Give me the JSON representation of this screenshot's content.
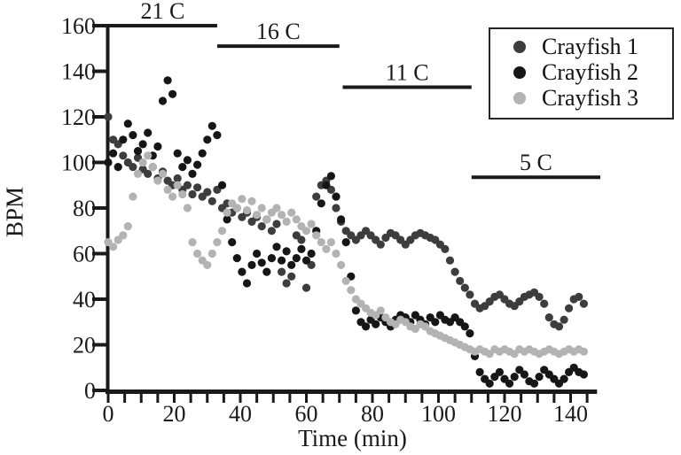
{
  "figure": {
    "background": "#ffffff",
    "text_color": "#1a1a1a"
  },
  "legend": {
    "border_color": "#262626",
    "items": [
      {
        "label": "Crayfish 1",
        "color": "#3d3d3d"
      },
      {
        "label": "Crayfish 2",
        "color": "#161616"
      },
      {
        "label": "Crayfish 3",
        "color": "#b3b3b3"
      }
    ]
  },
  "chart_data": {
    "type": "scatter",
    "title": "",
    "xlabel": "Time (min)",
    "ylabel": "BPM",
    "xlim": [
      0,
      148
    ],
    "ylim": [
      0,
      160
    ],
    "grid": false,
    "legend_position": "top-right",
    "x_major_ticks": [
      0,
      20,
      40,
      60,
      80,
      100,
      120,
      140
    ],
    "x_minor_tick_step": 5,
    "y_ticks": [
      0,
      20,
      40,
      60,
      80,
      100,
      120,
      140,
      160
    ],
    "annotations": [
      {
        "label": "21 C",
        "t_start": 0,
        "t_end": 33,
        "bpm": 160
      },
      {
        "label": "16 C",
        "t_start": 33,
        "t_end": 70,
        "bpm": 151
      },
      {
        "label": "11 C",
        "t_start": 71,
        "t_end": 110,
        "bpm": 133
      },
      {
        "label": "5 C",
        "t_start": 110,
        "t_end": 149,
        "bpm": 93.5
      }
    ],
    "t_start": 0,
    "t_step": 1.5,
    "series": [
      {
        "name": "Crayfish 1",
        "color": "#3d3d3d",
        "values": [
          120,
          110,
          108,
          103,
          100,
          98,
          102,
          97,
          95,
          98,
          93,
          96,
          92,
          90,
          93,
          88,
          90,
          86,
          89,
          85,
          87,
          83,
          88,
          80,
          82,
          78,
          80,
          76,
          78,
          74,
          76,
          72,
          75,
          70,
          73,
          52,
          47,
          50,
          68,
          66,
          45,
          55,
          85,
          90,
          92,
          88,
          80,
          74,
          70,
          68,
          66,
          68,
          70,
          68,
          66,
          64,
          67,
          69,
          68,
          66,
          64,
          66,
          68,
          69,
          68,
          67,
          66,
          64,
          62,
          57,
          52,
          48,
          45,
          42,
          38,
          36,
          37,
          39,
          41,
          42,
          40,
          38,
          37,
          39,
          41,
          42,
          43,
          41,
          38,
          32,
          29,
          28,
          31,
          36,
          40,
          41,
          38
        ]
      },
      {
        "name": "Crayfish 2",
        "color": "#161616",
        "values": [
          100,
          104,
          98,
          110,
          117,
          112,
          105,
          108,
          113,
          103,
          107,
          127,
          136,
          130,
          104,
          98,
          101,
          95,
          99,
          104,
          110,
          116,
          112,
          90,
          75,
          65,
          58,
          52,
          47,
          55,
          60,
          56,
          52,
          58,
          63,
          57,
          61,
          55,
          58,
          62,
          57,
          60,
          70,
          82,
          90,
          94,
          85,
          75,
          65,
          50,
          35,
          30,
          28,
          31,
          29,
          32,
          30,
          28,
          31,
          33,
          32,
          30,
          33,
          31,
          29,
          32,
          30,
          33,
          31,
          30,
          32,
          30,
          28,
          25,
          15,
          8,
          5,
          3,
          6,
          8,
          5,
          3,
          6,
          9,
          7,
          4,
          3,
          6,
          9,
          7,
          5,
          3,
          5,
          8,
          10,
          8,
          7
        ]
      },
      {
        "name": "Crayfish 3",
        "color": "#b3b3b3",
        "values": [
          65,
          63,
          66,
          68,
          72,
          85,
          95,
          100,
          103,
          98,
          92,
          95,
          88,
          85,
          90,
          86,
          80,
          65,
          60,
          57,
          55,
          60,
          65,
          70,
          78,
          82,
          80,
          84,
          79,
          83,
          77,
          80,
          75,
          78,
          80,
          77,
          74,
          78,
          75,
          72,
          70,
          73,
          68,
          65,
          62,
          65,
          60,
          55,
          48,
          44,
          40,
          38,
          36,
          34,
          33,
          35,
          32,
          30,
          29,
          31,
          30,
          28,
          27,
          29,
          28,
          26,
          25,
          24,
          23,
          22,
          21,
          20,
          19,
          18,
          17,
          18,
          17,
          16,
          18,
          17,
          18,
          17,
          16,
          18,
          17,
          18,
          17,
          16,
          17,
          18,
          17,
          16,
          17,
          18,
          17,
          18,
          17
        ]
      }
    ]
  }
}
